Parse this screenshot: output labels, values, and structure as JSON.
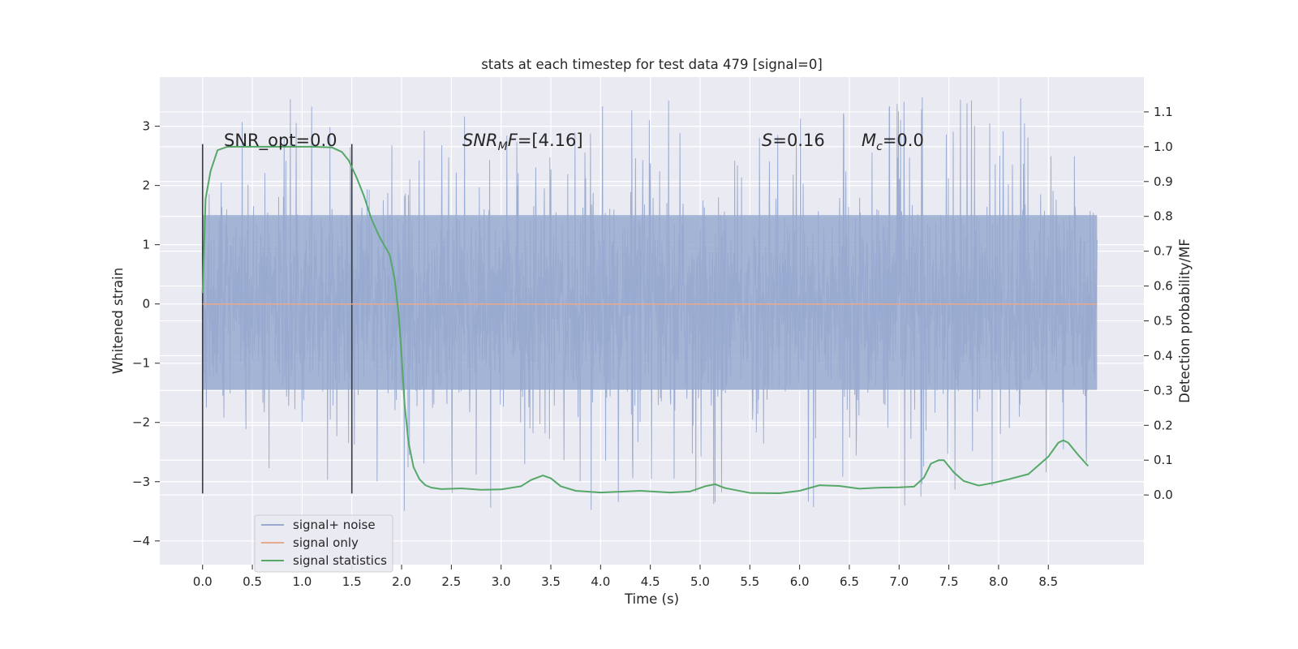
{
  "chart_data": {
    "type": "line",
    "title": "stats at each timestep for test data 479 [signal=0]",
    "xlabel": "Time (s)",
    "ylabel": "Whitened strain",
    "ylabel_right": "Detection probability/MF",
    "xlim": [
      -0.43,
      9.46
    ],
    "ylim": [
      -4.4,
      3.83
    ],
    "ylim_right": [
      -0.2,
      1.2
    ],
    "x_ticks": [
      0.0,
      0.5,
      1.0,
      1.5,
      2.0,
      2.5,
      3.0,
      3.5,
      4.0,
      4.5,
      5.0,
      5.5,
      6.0,
      6.5,
      7.0,
      7.5,
      8.0,
      8.5
    ],
    "x_tick_labels": [
      "0.0",
      "0.5",
      "1.0",
      "1.5",
      "2.0",
      "2.5",
      "3.0",
      "3.5",
      "4.0",
      "4.5",
      "5.0",
      "5.5",
      "6.0",
      "6.5",
      "7.0",
      "7.5",
      "8.0",
      "8.5"
    ],
    "y_ticks": [
      -4,
      -3,
      -2,
      -1,
      0,
      1,
      2,
      3
    ],
    "y_tick_labels": [
      "−4",
      "−3",
      "−2",
      "−1",
      "0",
      "1",
      "2",
      "3"
    ],
    "y_ticks_right": [
      0.0,
      0.1,
      0.2,
      0.3,
      0.4,
      0.5,
      0.6,
      0.7,
      0.8,
      0.9,
      1.0,
      1.1
    ],
    "y_tick_labels_right": [
      "0.0",
      "0.1",
      "0.2",
      "0.3",
      "0.4",
      "0.5",
      "0.6",
      "0.7",
      "0.8",
      "0.9",
      "1.0",
      "1.1"
    ],
    "grid": true,
    "legend_position": "lower-left",
    "annotations": {
      "snr_opt": "SNR_opt=0.0",
      "snr_mf_main": "SNR",
      "snr_mf_sub": "M",
      "snr_mf_rest": "F=[4.16]",
      "s_var": "S",
      "s_rest": "=0.16",
      "mc_var": "M",
      "mc_sub": "c",
      "mc_rest": "=0.0"
    },
    "vertical_markers": [
      {
        "x": 0.0,
        "ymin": -3.2,
        "ymax": 2.7
      },
      {
        "x": 1.5,
        "ymin": -3.2,
        "ymax": 2.7
      }
    ],
    "series": [
      {
        "name": "signal+ noise",
        "axis": "left",
        "color": "#98aad0",
        "description_kind": "noise",
        "x_range": [
          0.0,
          8.99
        ],
        "band_core": [
          -1.45,
          1.5
        ],
        "peak_max": 3.5,
        "peak_min": -4.0
      },
      {
        "name": "signal only",
        "axis": "left",
        "color": "#e8a98c",
        "x": [
          0.0,
          8.99
        ],
        "y": [
          0.0,
          0.0
        ]
      },
      {
        "name": "signal statistics",
        "axis": "right",
        "color": "#55a868",
        "x": [
          0.0,
          0.03,
          0.08,
          0.15,
          0.25,
          0.5,
          0.8,
          1.1,
          1.3,
          1.4,
          1.47,
          1.55,
          1.62,
          1.7,
          1.78,
          1.88,
          1.93,
          1.97,
          2.0,
          2.03,
          2.07,
          2.12,
          2.18,
          2.24,
          2.3,
          2.4,
          2.6,
          2.8,
          3.0,
          3.2,
          3.3,
          3.42,
          3.5,
          3.6,
          3.75,
          4.0,
          4.4,
          4.7,
          4.9,
          5.05,
          5.15,
          5.25,
          5.5,
          5.8,
          6.0,
          6.2,
          6.4,
          6.6,
          6.8,
          7.0,
          7.15,
          7.25,
          7.32,
          7.4,
          7.45,
          7.55,
          7.65,
          7.8,
          7.95,
          8.1,
          8.3,
          8.5,
          8.6,
          8.65,
          8.7,
          8.8,
          8.9
        ],
        "y": [
          0.58,
          0.85,
          0.93,
          0.99,
          1.0,
          1.0,
          1.0,
          1.0,
          0.998,
          0.985,
          0.96,
          0.91,
          0.86,
          0.79,
          0.74,
          0.69,
          0.62,
          0.52,
          0.4,
          0.26,
          0.15,
          0.08,
          0.045,
          0.028,
          0.021,
          0.017,
          0.019,
          0.015,
          0.016,
          0.025,
          0.043,
          0.056,
          0.048,
          0.025,
          0.012,
          0.007,
          0.012,
          0.007,
          0.01,
          0.025,
          0.031,
          0.02,
          0.006,
          0.005,
          0.012,
          0.028,
          0.026,
          0.018,
          0.021,
          0.022,
          0.024,
          0.05,
          0.09,
          0.1,
          0.1,
          0.065,
          0.04,
          0.027,
          0.035,
          0.045,
          0.06,
          0.11,
          0.15,
          0.157,
          0.15,
          0.115,
          0.083
        ]
      }
    ]
  }
}
